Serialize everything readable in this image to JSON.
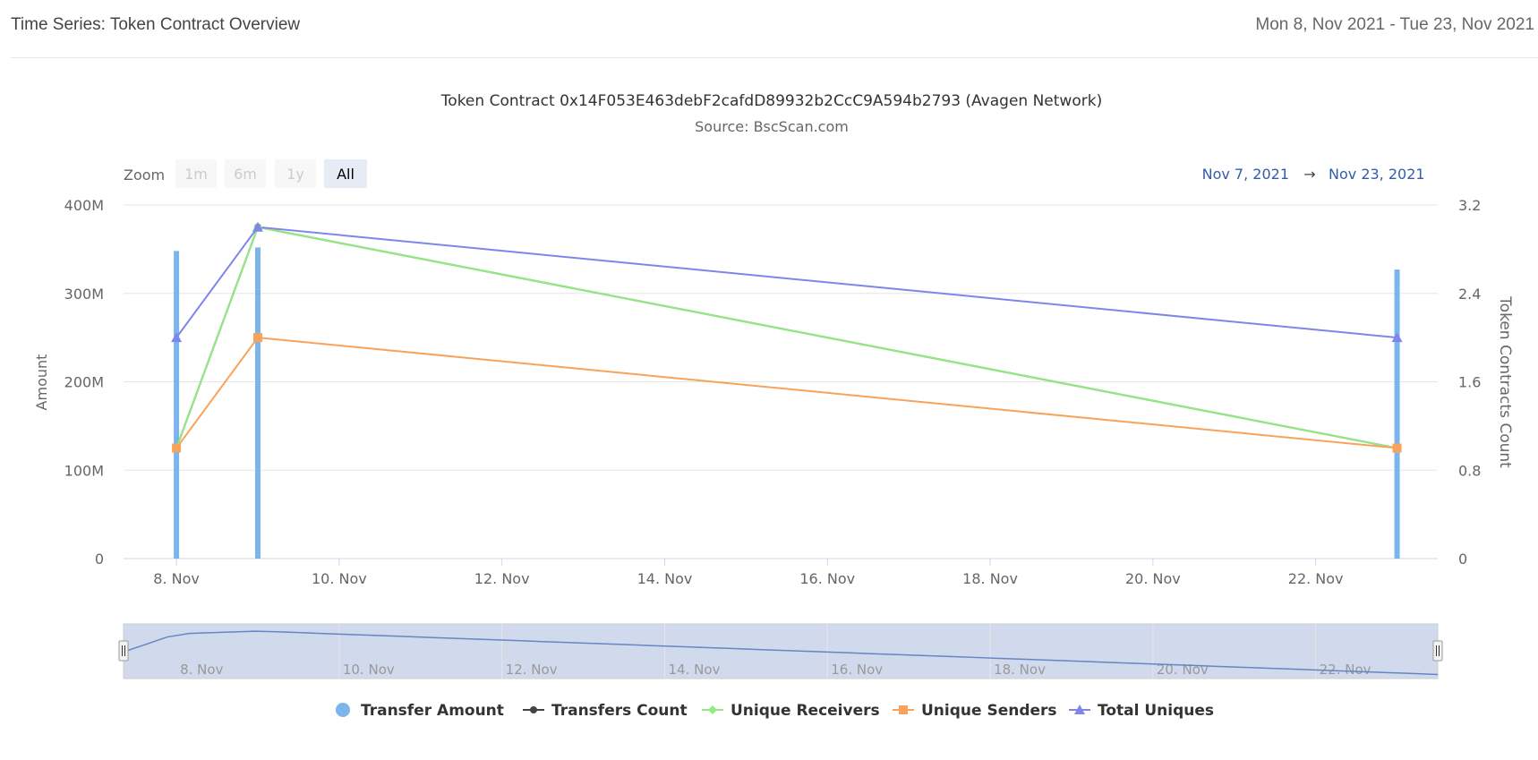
{
  "header": {
    "title": "Time Series: Token Contract Overview",
    "date_range": "Mon 8, Nov 2021 - Tue 23, Nov 2021"
  },
  "chart_data": {
    "type": "line",
    "title": "Token Contract 0x14F053E463debF2cafdD89932b2CcC9A594b2793 (Avagen Network)",
    "subtitle": "Source: BscScan.com",
    "range_selector": {
      "zoom_label": "Zoom",
      "buttons": [
        {
          "label": "1m",
          "active": false
        },
        {
          "label": "6m",
          "active": false
        },
        {
          "label": "1y",
          "active": false
        },
        {
          "label": "All",
          "active": true
        }
      ],
      "from": "Nov 7, 2021",
      "arrow": "→",
      "to": "Nov 23, 2021"
    },
    "y_left": {
      "label": "Amount",
      "ticks": [
        "0",
        "100M",
        "200M",
        "300M",
        "400M"
      ],
      "ylim": [
        0,
        400000000
      ]
    },
    "y_right": {
      "label": "Token Contracts Count",
      "ticks": [
        "0",
        "0.8",
        "1.6",
        "2.4",
        "3.2"
      ],
      "ylim": [
        0,
        3.2
      ]
    },
    "x_ticks": [
      "8. Nov",
      "10. Nov",
      "12. Nov",
      "14. Nov",
      "16. Nov",
      "18. Nov",
      "20. Nov",
      "22. Nov"
    ],
    "x_tick_days": [
      8,
      10,
      12,
      14,
      16,
      18,
      20,
      22
    ],
    "x_domain_days": [
      7.35,
      23.5
    ],
    "series": [
      {
        "name": "Transfer Amount",
        "kind": "column",
        "axis": "left",
        "color": "#7cb5ec",
        "x": [
          "2021-11-08",
          "2021-11-09",
          "2021-11-23"
        ],
        "days": [
          8,
          9,
          23
        ],
        "values": [
          348000000,
          352000000,
          327000000
        ]
      },
      {
        "name": "Transfers Count",
        "kind": "line",
        "axis": "right",
        "color": "#434348",
        "marker": "circle",
        "x": [
          "2021-11-08",
          "2021-11-09",
          "2021-11-23"
        ],
        "days": [
          8,
          9,
          23
        ],
        "values": [
          1,
          3,
          1
        ]
      },
      {
        "name": "Unique Receivers",
        "kind": "line",
        "axis": "right",
        "color": "#90ed7d",
        "marker": "diamond",
        "x": [
          "2021-11-08",
          "2021-11-09",
          "2021-11-23"
        ],
        "days": [
          8,
          9,
          23
        ],
        "values": [
          1,
          3,
          1
        ]
      },
      {
        "name": "Unique Senders",
        "kind": "line",
        "axis": "right",
        "color": "#f7a35c",
        "marker": "square",
        "x": [
          "2021-11-08",
          "2021-11-09",
          "2021-11-23"
        ],
        "days": [
          8,
          9,
          23
        ],
        "values": [
          1,
          2,
          1
        ]
      },
      {
        "name": "Total Uniques",
        "kind": "line",
        "axis": "right",
        "color": "#8085e9",
        "marker": "triangle",
        "x": [
          "2021-11-08",
          "2021-11-09",
          "2021-11-23"
        ],
        "days": [
          8,
          9,
          23
        ],
        "values": [
          2,
          3,
          2
        ]
      }
    ],
    "navigator": {
      "x_ticks": [
        "8. Nov",
        "10. Nov",
        "12. Nov",
        "14. Nov",
        "16. Nov",
        "18. Nov",
        "20. Nov",
        "22. Nov"
      ]
    },
    "grid": true,
    "legend_position": "bottom"
  }
}
